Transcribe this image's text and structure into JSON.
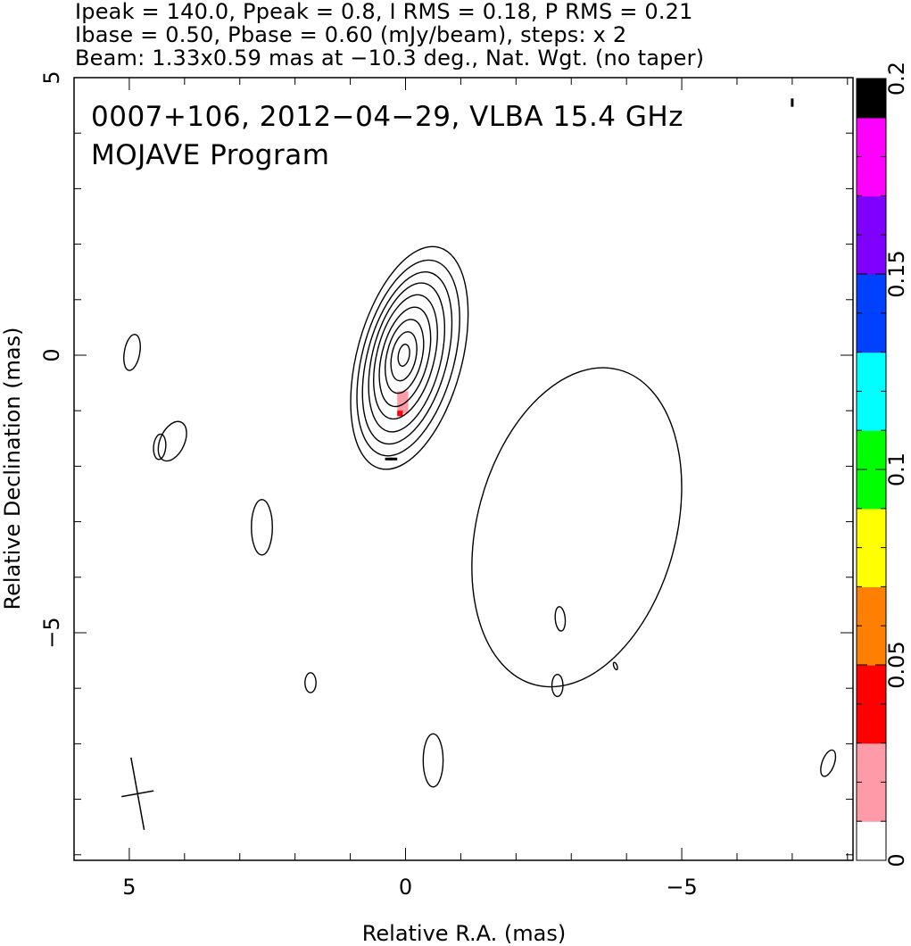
{
  "header": {
    "line1": "Ipeak = 140.0, Ppeak = 0.8, I RMS = 0.18, P RMS = 0.21",
    "line2": "Ibase = 0.50, Pbase = 0.60 (mJy/beam), steps: x 2",
    "line3": "Beam: 1.33x0.59 mas at −10.3 deg., Nat. Wgt. (no taper)"
  },
  "chart_data": {
    "type": "contour",
    "title": "0007+106, 2012−04−29, VLBA 15.4 GHz",
    "subtitle": "MOJAVE Program",
    "xlabel": "Relative R.A. (mas)",
    "ylabel": "Relative Declination (mas)",
    "xlim": [
      6.0,
      -8.1
    ],
    "ylim": [
      -9.1,
      5.0
    ],
    "x_ticks": [
      {
        "value": 5,
        "label": "5"
      },
      {
        "value": 0,
        "label": "0"
      },
      {
        "value": -5,
        "label": "−5"
      }
    ],
    "y_ticks": [
      {
        "value": 5,
        "label": "5"
      },
      {
        "value": 0,
        "label": "0"
      },
      {
        "value": -5,
        "label": "−5"
      }
    ],
    "colorbar": {
      "min": 0,
      "max": 0.2,
      "ticks": [
        {
          "value": 0,
          "label": "0"
        },
        {
          "value": 0.05,
          "label": "0.05"
        },
        {
          "value": 0.1,
          "label": "0.1"
        },
        {
          "value": 0.15,
          "label": "0.15"
        },
        {
          "value": 0.2,
          "label": "0.2"
        }
      ],
      "colors": [
        "#ffffff",
        "#ff9aa8",
        "#ff0000",
        "#ff8000",
        "#ffff00",
        "#00ff00",
        "#00ffff",
        "#0040ff",
        "#8000ff",
        "#ff00ff",
        "#000000"
      ]
    },
    "beam": {
      "major_mas": 1.33,
      "minor_mas": 0.59,
      "pa_deg": -10.3,
      "center": [
        4.85,
        -7.9
      ]
    },
    "core": {
      "center": [
        0.03,
        -0.08
      ],
      "contours": [
        {
          "semi_major": 2.07,
          "semi_minor": 0.95,
          "pa_deg": -15,
          "cx": -0.07,
          "cy": -0.05
        },
        {
          "semi_major": 1.82,
          "semi_minor": 0.83,
          "pa_deg": -15,
          "cx": -0.05,
          "cy": -0.05
        },
        {
          "semi_major": 1.6,
          "semi_minor": 0.72,
          "pa_deg": -15,
          "cx": -0.03,
          "cy": -0.05
        },
        {
          "semi_major": 1.38,
          "semi_minor": 0.62,
          "pa_deg": -14,
          "cx": -0.02,
          "cy": -0.04
        },
        {
          "semi_major": 1.15,
          "semi_minor": 0.52,
          "pa_deg": -14,
          "cx": 0.0,
          "cy": -0.03
        },
        {
          "semi_major": 0.92,
          "semi_minor": 0.42,
          "pa_deg": -14,
          "cx": 0.01,
          "cy": -0.03
        },
        {
          "semi_major": 0.68,
          "semi_minor": 0.32,
          "pa_deg": -13,
          "cx": 0.02,
          "cy": -0.02
        },
        {
          "semi_major": 0.45,
          "semi_minor": 0.22,
          "pa_deg": -12,
          "cx": 0.03,
          "cy": -0.02
        },
        {
          "semi_major": 0.2,
          "semi_minor": 0.1,
          "pa_deg": -10,
          "cx": 0.03,
          "cy": 0.0
        }
      ]
    },
    "extended_contours": [
      {
        "cx": -3.1,
        "cy": -3.1,
        "semi_major": 2.95,
        "semi_minor": 1.8,
        "pa_deg": -15
      },
      {
        "cx": 4.95,
        "cy": 0.05,
        "semi_major": 0.33,
        "semi_minor": 0.14,
        "pa_deg": -10
      },
      {
        "cx": 4.22,
        "cy": -1.55,
        "semi_major": 0.38,
        "semi_minor": 0.22,
        "pa_deg": -25
      },
      {
        "cx": 4.45,
        "cy": -1.65,
        "semi_major": 0.23,
        "semi_minor": 0.11,
        "pa_deg": -5
      },
      {
        "cx": 2.6,
        "cy": -3.1,
        "semi_major": 0.5,
        "semi_minor": 0.19,
        "pa_deg": 0
      },
      {
        "cx": 1.72,
        "cy": -5.9,
        "semi_major": 0.18,
        "semi_minor": 0.1,
        "pa_deg": 0
      },
      {
        "cx": -0.5,
        "cy": -7.3,
        "semi_major": 0.48,
        "semi_minor": 0.18,
        "pa_deg": 0
      },
      {
        "cx": -2.8,
        "cy": -4.75,
        "semi_major": 0.22,
        "semi_minor": 0.09,
        "pa_deg": 5
      },
      {
        "cx": -2.75,
        "cy": -5.95,
        "semi_major": 0.2,
        "semi_minor": 0.1,
        "pa_deg": 0
      },
      {
        "cx": -3.8,
        "cy": -5.6,
        "semi_major": 0.07,
        "semi_minor": 0.03,
        "pa_deg": 20
      },
      {
        "cx": -7.65,
        "cy": -7.35,
        "semi_major": 0.25,
        "semi_minor": 0.11,
        "pa_deg": -20
      }
    ],
    "polarization_pixels": [
      {
        "x": 0.15,
        "y": -0.65,
        "w": 0.2,
        "h": 0.2,
        "value": 0.015
      },
      {
        "x": 0.15,
        "y": -0.85,
        "w": 0.2,
        "h": 0.2,
        "value": 0.025
      },
      {
        "x": 0.15,
        "y": -1.0,
        "w": 0.1,
        "h": 0.1,
        "value": 0.035
      }
    ],
    "polarization_vectors": [
      {
        "x": 0.3,
        "y": -1.87,
        "length_mas": 0.14,
        "angle_deg": 90
      },
      {
        "x": 0.22,
        "y": -1.87,
        "length_mas": 0.14,
        "angle_deg": 90
      },
      {
        "x": -7.0,
        "y": 4.55,
        "length_mas": 0.15,
        "angle_deg": 0
      }
    ]
  }
}
